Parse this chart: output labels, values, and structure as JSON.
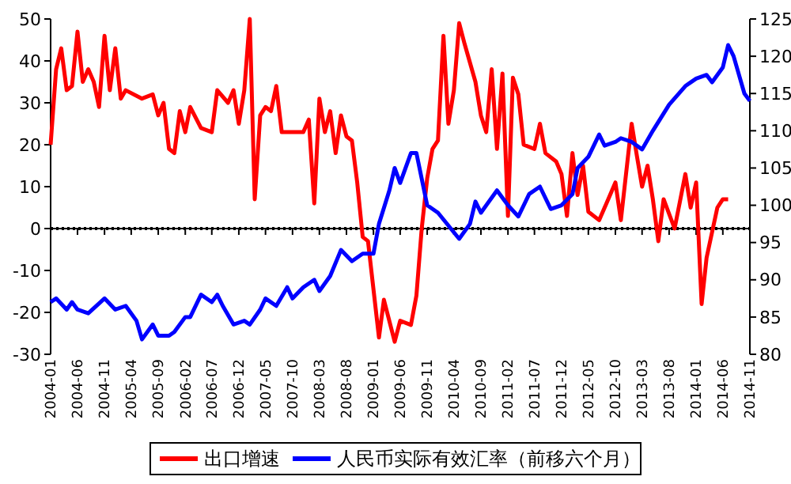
{
  "chart_data": {
    "type": "line",
    "xlim": [
      "2004-01",
      "2014-11"
    ],
    "xticks": [
      "2004-01",
      "2004-06",
      "2004-11",
      "2005-04",
      "2005-09",
      "2006-02",
      "2006-07",
      "2006-12",
      "2007-05",
      "2007-10",
      "2008-03",
      "2008-08",
      "2009-01",
      "2009-06",
      "2009-11",
      "2010-04",
      "2010-09",
      "2011-02",
      "2011-07",
      "2011-12",
      "2012-05",
      "2012-10",
      "2013-03",
      "2013-08",
      "2014-01",
      "2014-06",
      "2014-11"
    ],
    "ylim": [
      -30,
      50
    ],
    "yticks": [
      -30,
      -20,
      -10,
      0,
      10,
      20,
      30,
      40,
      50
    ],
    "y2lim": [
      80,
      125
    ],
    "y2ticks": [
      80,
      85,
      90,
      95,
      100,
      105,
      110,
      115,
      120,
      125
    ],
    "legend": "bottom",
    "grid": false,
    "ref_lines": [
      {
        "axis": "y",
        "value": 0,
        "line_style": "dotted",
        "color": "#000000"
      }
    ],
    "series": [
      {
        "name": "出口增速",
        "color": "#ff0000",
        "x": [
          "2004-01",
          "2004-02",
          "2004-03",
          "2004-04",
          "2004-05",
          "2004-06",
          "2004-07",
          "2004-08",
          "2004-09",
          "2004-10",
          "2004-11",
          "2004-12",
          "2005-01",
          "2005-02",
          "2005-03",
          "2005-06",
          "2005-08",
          "2005-09",
          "2005-10",
          "2005-11",
          "2005-12",
          "2006-01",
          "2006-02",
          "2006-03",
          "2006-05",
          "2006-07",
          "2006-08",
          "2006-10",
          "2006-11",
          "2006-12",
          "2007-01",
          "2007-02",
          "2007-03",
          "2007-04",
          "2007-05",
          "2007-06",
          "2007-07",
          "2007-08",
          "2007-12",
          "2008-01",
          "2008-02",
          "2008-03",
          "2008-04",
          "2008-05",
          "2008-06",
          "2008-07",
          "2008-08",
          "2008-09",
          "2008-10",
          "2008-11",
          "2008-12",
          "2009-02",
          "2009-03",
          "2009-05",
          "2009-06",
          "2009-08",
          "2009-09",
          "2009-10",
          "2009-11",
          "2009-12",
          "2010-01",
          "2010-02",
          "2010-03",
          "2010-04",
          "2010-05",
          "2010-06",
          "2010-08",
          "2010-09",
          "2010-10",
          "2010-11",
          "2010-12",
          "2011-01",
          "2011-02",
          "2011-03",
          "2011-04",
          "2011-05",
          "2011-07",
          "2011-08",
          "2011-09",
          "2011-11",
          "2011-12",
          "2012-01",
          "2012-02",
          "2012-03",
          "2012-04",
          "2012-05",
          "2012-07",
          "2012-09",
          "2012-10",
          "2012-11",
          "2013-01",
          "2013-02",
          "2013-03",
          "2013-04",
          "2013-05",
          "2013-06",
          "2013-07",
          "2013-09",
          "2013-11",
          "2013-12",
          "2014-01",
          "2014-02",
          "2014-03",
          "2014-05",
          "2014-06",
          "2014-07"
        ],
        "values": [
          20,
          38,
          43,
          33,
          34,
          47,
          35,
          38,
          35,
          29,
          46,
          33,
          43,
          31,
          33,
          31,
          32,
          27,
          30,
          19,
          18,
          28,
          23,
          29,
          24,
          23,
          33,
          30,
          33,
          25,
          33,
          50,
          7,
          27,
          29,
          28,
          34,
          23,
          23,
          26,
          6,
          31,
          23,
          28,
          18,
          27,
          22,
          21,
          11,
          -2,
          -3,
          -26,
          -17,
          -27,
          -22,
          -23,
          -16,
          0,
          12,
          19,
          21,
          46,
          25,
          33,
          49,
          44,
          35,
          27,
          23,
          38,
          19,
          37,
          3,
          36,
          32,
          20,
          19,
          25,
          18,
          16,
          13,
          3,
          18,
          8,
          15,
          4,
          2,
          8,
          11,
          2,
          25,
          17,
          10,
          15,
          7,
          -3,
          7,
          0,
          13,
          5,
          11,
          -18,
          -7,
          5,
          7,
          7
        ]
      },
      {
        "name": "人民币实际有效汇率（前移六个月）",
        "color": "#0000ff",
        "axis": "y2",
        "x": [
          "2004-01",
          "2004-02",
          "2004-04",
          "2004-05",
          "2004-06",
          "2004-08",
          "2004-11",
          "2005-01",
          "2005-03",
          "2005-05",
          "2005-06",
          "2005-08",
          "2005-09",
          "2005-11",
          "2005-12",
          "2006-02",
          "2006-03",
          "2006-05",
          "2006-07",
          "2006-08",
          "2006-09",
          "2006-11",
          "2007-01",
          "2007-02",
          "2007-04",
          "2007-05",
          "2007-07",
          "2007-09",
          "2007-10",
          "2007-12",
          "2008-02",
          "2008-03",
          "2008-05",
          "2008-07",
          "2008-09",
          "2008-11",
          "2009-01",
          "2009-02",
          "2009-04",
          "2009-05",
          "2009-06",
          "2009-08",
          "2009-09",
          "2009-11",
          "2010-01",
          "2010-05",
          "2010-07",
          "2010-08",
          "2010-09",
          "2010-12",
          "2011-02",
          "2011-04",
          "2011-06",
          "2011-08",
          "2011-10",
          "2011-12",
          "2012-02",
          "2012-03",
          "2012-05",
          "2012-07",
          "2012-08",
          "2012-10",
          "2012-11",
          "2013-01",
          "2013-03",
          "2013-05",
          "2013-08",
          "2013-11",
          "2013-12",
          "2014-01",
          "2014-03",
          "2014-04",
          "2014-06",
          "2014-07",
          "2014-08",
          "2014-10",
          "2014-11"
        ],
        "values": [
          87,
          87.5,
          86,
          87,
          86,
          85.5,
          87.5,
          86,
          86.5,
          84.5,
          82,
          84,
          82.5,
          82.5,
          83,
          85,
          85,
          88,
          87,
          88,
          86.5,
          84,
          84.5,
          84,
          86,
          87.5,
          86.5,
          89,
          87.5,
          89,
          90,
          88.5,
          90.5,
          94,
          92.5,
          93.5,
          93.5,
          97.5,
          102,
          105,
          103,
          107,
          107,
          100,
          99,
          95.5,
          97.5,
          100.5,
          99,
          102,
          100,
          98.5,
          101.5,
          102.5,
          99.5,
          100,
          101.5,
          105,
          106.5,
          109.5,
          108,
          108.5,
          109,
          108.5,
          107.5,
          110,
          113.5,
          116,
          116.5,
          117,
          117.5,
          116.5,
          118.5,
          121.5,
          120,
          115,
          114
        ]
      }
    ]
  }
}
